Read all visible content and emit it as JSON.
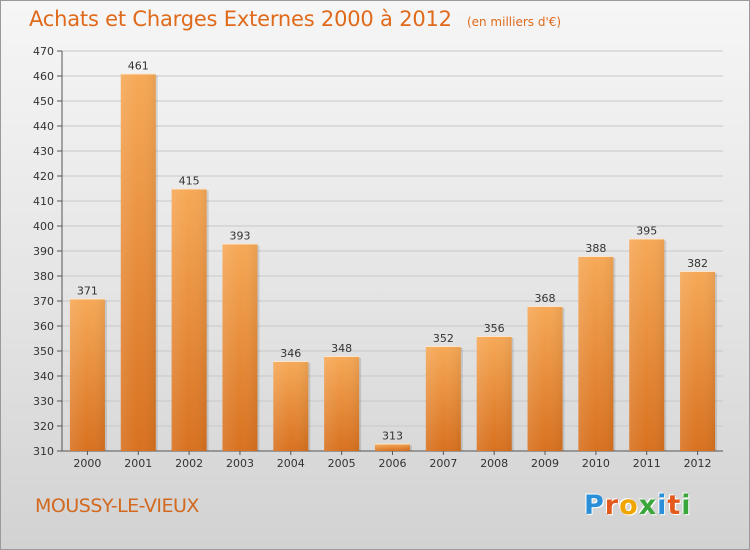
{
  "header": {
    "title": "Achats et Charges Externes 2000 à 2012",
    "unit": "(en milliers d'€)"
  },
  "footer": {
    "town": "MOUSSY-LE-VIEUX",
    "logo_letters": [
      "P",
      "r",
      "o",
      "x",
      "i",
      "t",
      "i"
    ],
    "logo_colors": [
      "#2a8fd8",
      "#e35a1c",
      "#f0a500",
      "#3aa63a",
      "#2a8fd8",
      "#e35a1c",
      "#3aa63a"
    ]
  },
  "colors": {
    "bar_top": "#f6a957",
    "bar_bottom": "#d8711f",
    "title": "#e06a1b",
    "grid": "#c8c8c8"
  },
  "chart_data": {
    "type": "bar",
    "categories": [
      "2000",
      "2001",
      "2002",
      "2003",
      "2004",
      "2005",
      "2006",
      "2007",
      "2008",
      "2009",
      "2010",
      "2011",
      "2012"
    ],
    "values": [
      371,
      461,
      415,
      393,
      346,
      348,
      313,
      352,
      356,
      368,
      388,
      395,
      382
    ],
    "ylim": [
      310,
      470
    ],
    "yticks": [
      310,
      320,
      330,
      340,
      350,
      360,
      370,
      380,
      390,
      400,
      410,
      420,
      430,
      440,
      450,
      460,
      470
    ],
    "grid": true,
    "legend": "none"
  }
}
